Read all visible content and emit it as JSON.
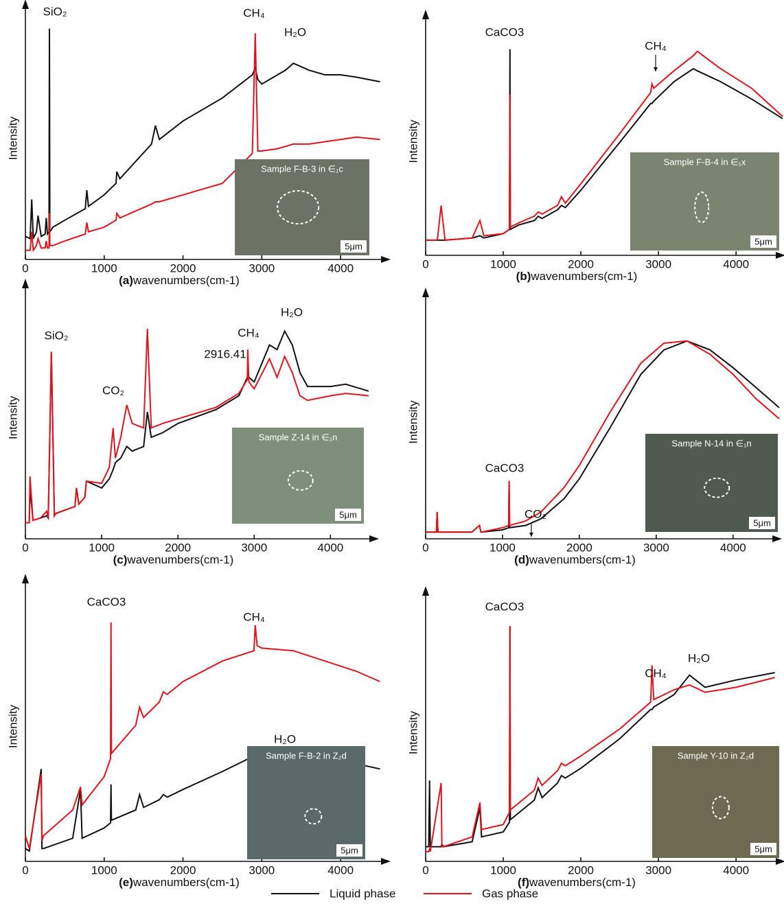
{
  "chart_data": [
    {
      "type": "line",
      "panel_label": "(a)",
      "x_label": "wavenumbers(cm-1)",
      "y_label": "Intensity",
      "xlim": [
        0,
        4600
      ],
      "ylim": [
        0,
        105
      ],
      "xticks": [
        0,
        1000,
        2000,
        3000,
        4000
      ],
      "x": [
        0,
        60,
        80,
        100,
        140,
        160,
        200,
        250,
        265,
        280,
        300,
        305,
        310,
        350,
        500,
        760,
        780,
        800,
        1000,
        1150,
        1160,
        1200,
        1600,
        1650,
        1700,
        2000,
        2500,
        2880,
        2917,
        2950,
        3000,
        3200,
        3300,
        3400,
        3600,
        3800,
        4000,
        4200,
        4500
      ],
      "series": [
        {
          "name": "Liquid phase",
          "color": "#111111",
          "values": [
            10,
            9,
            26,
            9,
            12,
            19,
            10,
            11,
            18,
            11,
            12,
            100,
            12,
            14,
            17,
            22,
            30,
            23,
            28,
            33,
            38,
            35,
            50,
            58,
            52,
            60,
            70,
            80,
            83,
            78,
            76,
            80,
            82,
            85,
            82,
            80,
            80,
            79,
            77
          ]
        },
        {
          "name": "Gas phase",
          "color": "#e0141e",
          "values": [
            4,
            4,
            12,
            4,
            6,
            9,
            5,
            5,
            8,
            5,
            5,
            20,
            6,
            6,
            8,
            11,
            16,
            12,
            14,
            17,
            20,
            18,
            24,
            25,
            25,
            28,
            33,
            46,
            98,
            47,
            47,
            48,
            49,
            50,
            50,
            51,
            52,
            53,
            52
          ]
        }
      ],
      "annotations": [
        "SiO₂",
        "CH₄",
        "H₂O"
      ],
      "inset": {
        "sample": "Sample F-B-3 in ∈₁c",
        "scale": "5μm"
      }
    },
    {
      "type": "line",
      "panel_label": "(b)",
      "x_label": "wavenumbers(cm-1)",
      "y_label": "Intensity",
      "xlim": [
        0,
        4600
      ],
      "ylim": [
        0,
        105
      ],
      "xticks": [
        0,
        1000,
        2000,
        3000,
        4000
      ],
      "x": [
        0,
        150,
        200,
        250,
        600,
        700,
        750,
        1000,
        1080,
        1086,
        1092,
        1200,
        1400,
        1450,
        1500,
        1700,
        1750,
        1800,
        2000,
        2500,
        2900,
        2917,
        2940,
        3200,
        3450,
        3500,
        3800,
        4200,
        4600
      ],
      "series": [
        {
          "name": "Liquid phase",
          "color": "#111111",
          "values": [
            7,
            7,
            7,
            7,
            8,
            9,
            8,
            10,
            12,
            95,
            12,
            14,
            16,
            18,
            17,
            21,
            23,
            22,
            30,
            52,
            70,
            70,
            71,
            80,
            86,
            85,
            80,
            72,
            63
          ]
        },
        {
          "name": "Gas phase",
          "color": "#e0141e",
          "values": [
            7,
            7,
            23,
            7,
            8,
            16,
            9,
            10,
            12,
            74,
            13,
            15,
            18,
            20,
            19,
            23,
            27,
            24,
            33,
            56,
            75,
            79,
            77,
            85,
            92,
            94,
            86,
            77,
            64
          ]
        }
      ],
      "annotations": [
        "CaCO3",
        "CH₄"
      ],
      "inset": {
        "sample": "Sample F-B-4 in ∈₁x",
        "scale": "5μm"
      }
    },
    {
      "type": "line",
      "panel_label": "(c)",
      "x_label": "wavenumbers(cm-1)",
      "y_label": "Intensity",
      "xlim": [
        0,
        4600
      ],
      "ylim": [
        0,
        105
      ],
      "xticks": [
        0,
        1000,
        2000,
        3000,
        4000
      ],
      "x": [
        0,
        50,
        60,
        100,
        200,
        280,
        300,
        340,
        380,
        400,
        650,
        670,
        700,
        780,
        800,
        1000,
        1100,
        1150,
        1180,
        1250,
        1330,
        1400,
        1550,
        1600,
        1650,
        1800,
        2000,
        2500,
        2800,
        2910,
        2916,
        2930,
        3000,
        3200,
        3300,
        3400,
        3500,
        3600,
        3700,
        4000,
        4200,
        4500
      ],
      "series": [
        {
          "name": "Liquid phase",
          "color": "#111111",
          "values": [
            7,
            7,
            22,
            8,
            9,
            10,
            9,
            81,
            10,
            11,
            14,
            22,
            15,
            18,
            25,
            22,
            26,
            30,
            33,
            35,
            40,
            38,
            40,
            55,
            44,
            46,
            50,
            56,
            62,
            70,
            72,
            70,
            68,
            84,
            82,
            90,
            84,
            72,
            66,
            66,
            67,
            64
          ]
        },
        {
          "name": "Gas phase",
          "color": "#e0141e",
          "values": [
            7,
            7,
            27,
            8,
            9,
            12,
            9,
            81,
            10,
            11,
            14,
            22,
            15,
            18,
            25,
            24,
            31,
            48,
            35,
            44,
            58,
            50,
            48,
            91,
            48,
            50,
            52,
            57,
            63,
            69,
            82,
            68,
            65,
            78,
            70,
            79,
            72,
            62,
            60,
            62,
            63,
            62
          ]
        }
      ],
      "annotations": [
        "SiO₂",
        "CO₂",
        "2916.41",
        "CH₄",
        "H₂O"
      ],
      "inset": {
        "sample": "Sample Z-14 in ∈₁n",
        "scale": "5μm"
      }
    },
    {
      "type": "line",
      "panel_label": "(d)",
      "x_label": "wavenumbers(cm-1)",
      "y_label": "Intensity",
      "xlim": [
        0,
        4600
      ],
      "ylim": [
        0,
        105
      ],
      "xticks": [
        0,
        1000,
        2000,
        3000,
        4000
      ],
      "x": [
        0,
        140,
        150,
        160,
        600,
        700,
        720,
        1000,
        1080,
        1086,
        1092,
        1300,
        1500,
        1800,
        2000,
        2400,
        2800,
        3100,
        3400,
        3700,
        4000,
        4300,
        4600
      ],
      "series": [
        {
          "name": "Liquid phase",
          "color": "#111111",
          "values": [
            3,
            3,
            12,
            3,
            3,
            6,
            3,
            4,
            5,
            26,
            5,
            6,
            9,
            18,
            27,
            50,
            74,
            85,
            89,
            85,
            77,
            68,
            59
          ]
        },
        {
          "name": "Gas phase",
          "color": "#e0141e",
          "values": [
            3,
            3,
            12,
            3,
            3,
            6,
            3,
            5,
            6,
            26,
            6,
            8,
            12,
            23,
            33,
            57,
            79,
            88,
            89,
            83,
            74,
            63,
            54
          ]
        }
      ],
      "annotations": [
        "CaCO3",
        "CO₂"
      ],
      "inset": {
        "sample": "Sample N-14 in ∈₁n",
        "scale": "5μm"
      }
    },
    {
      "type": "line",
      "panel_label": "(e)",
      "x_label": "wavenumbers(cm-1)",
      "y_label": "Intensity",
      "xlim": [
        0,
        4600
      ],
      "ylim": [
        0,
        105
      ],
      "xticks": [
        0,
        1000,
        2000,
        3000,
        4000
      ],
      "x": [
        0,
        50,
        200,
        210,
        230,
        600,
        700,
        720,
        1000,
        1080,
        1086,
        1092,
        1400,
        1450,
        1500,
        1700,
        1750,
        1800,
        2000,
        2500,
        2900,
        2917,
        2940,
        3000,
        3400,
        3800,
        4200,
        4500
      ],
      "series": [
        {
          "name": "Liquid phase",
          "color": "#111111",
          "values": [
            5,
            4,
            36,
            5,
            5,
            9,
            28,
            9,
            13,
            15,
            30,
            16,
            20,
            26,
            21,
            24,
            26,
            25,
            28,
            35,
            41,
            41,
            42,
            43,
            42,
            40,
            38,
            36
          ]
        },
        {
          "name": "Gas phase",
          "color": "#e0141e",
          "values": [
            10,
            5,
            34,
            8,
            10,
            20,
            29,
            22,
            33,
            40,
            93,
            42,
            53,
            60,
            56,
            62,
            66,
            65,
            70,
            78,
            82,
            92,
            84,
            83,
            82,
            78,
            74,
            70
          ]
        }
      ],
      "annotations": [
        "CaCO3",
        "CH₄",
        "H₂O"
      ],
      "inset": {
        "sample": "Sample F-B-2 in Z₂d",
        "scale": "5μm"
      }
    },
    {
      "type": "line",
      "panel_label": "(f)",
      "x_label": "wavenumbers(cm-1)",
      "y_label": "Intensity",
      "xlim": [
        0,
        4600
      ],
      "ylim": [
        0,
        105
      ],
      "xticks": [
        0,
        1000,
        2000,
        3000,
        4000
      ],
      "x": [
        0,
        40,
        50,
        60,
        200,
        210,
        230,
        600,
        700,
        720,
        1000,
        1080,
        1086,
        1092,
        1400,
        1450,
        1500,
        1700,
        1750,
        1800,
        2000,
        2500,
        2900,
        2917,
        2940,
        3200,
        3400,
        3600,
        4000,
        4500
      ],
      "series": [
        {
          "name": "Liquid phase",
          "color": "#111111",
          "values": [
            6,
            6,
            33,
            6,
            6,
            7,
            6,
            8,
            22,
            10,
            12,
            16,
            96,
            17,
            25,
            30,
            26,
            32,
            35,
            34,
            38,
            50,
            62,
            62,
            63,
            68,
            76,
            71,
            74,
            77
          ]
        },
        {
          "name": "Gas phase",
          "color": "#e0141e",
          "values": [
            4,
            4,
            5,
            4,
            32,
            6,
            6,
            10,
            24,
            13,
            15,
            20,
            96,
            21,
            29,
            34,
            31,
            37,
            40,
            39,
            43,
            54,
            65,
            80,
            66,
            70,
            72,
            69,
            71,
            75
          ]
        }
      ],
      "annotations": [
        "CaCO3",
        "CH₄",
        "H₂O"
      ],
      "inset": {
        "sample": "Sample Y-10 in Z₂d",
        "scale": "5μm"
      }
    }
  ]
}
